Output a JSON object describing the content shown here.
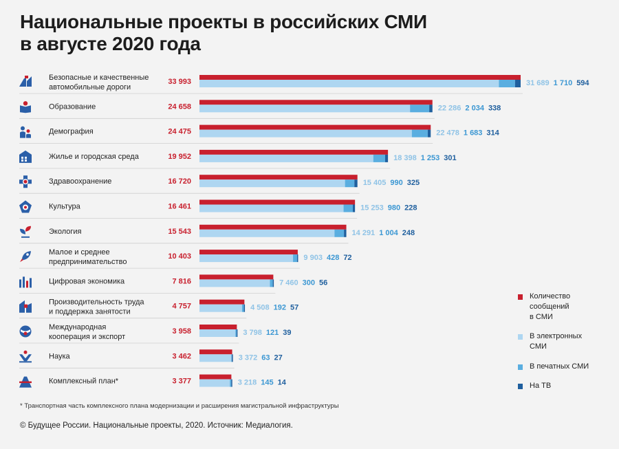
{
  "title": {
    "line1": "Национальные проекты в российских СМИ",
    "line2": "в августе 2020 года"
  },
  "chart_data": {
    "type": "bar",
    "categories": [
      "Безопасные и качественные\nавтомобильные дороги",
      "Образование",
      "Демография",
      "Жилье и городская среда",
      "Здравоохранение",
      "Культура",
      "Экология",
      "Малое и среднее\nпредпринимательство",
      "Цифровая экономика",
      "Производительность труда\nи поддержка занятости",
      "Международная\nкооперация и экспорт",
      "Наука",
      "Комплексный план*"
    ],
    "totals_display": [
      "33 993",
      "24 658",
      "24 475",
      "19 952",
      "16 720",
      "16 461",
      "15 543",
      "10 403",
      "7 816",
      "4 757",
      "3 958",
      "3 462",
      "3 377"
    ],
    "series": [
      {
        "name": "Количество\nсообщений\nв СМИ",
        "values": [
          33993,
          24658,
          24475,
          19952,
          16720,
          16461,
          15543,
          10403,
          7816,
          4757,
          3958,
          3462,
          3377
        ]
      },
      {
        "name": "В электронных\nСМИ",
        "values": [
          31689,
          22286,
          22478,
          18398,
          15405,
          15253,
          14291,
          9903,
          7460,
          4508,
          3798,
          3372,
          3218
        ],
        "labels": [
          "31 689",
          "22 286",
          "22 478",
          "18 398",
          "15 405",
          "15 253",
          "14 291",
          "9 903",
          "7 460",
          "4 508",
          "3 798",
          "3 372",
          "3 218"
        ]
      },
      {
        "name": "В печатных СМИ",
        "values": [
          1710,
          2034,
          1683,
          1253,
          990,
          980,
          1004,
          428,
          300,
          192,
          121,
          63,
          145
        ],
        "labels": [
          "1 710",
          "2 034",
          "1 683",
          "1 253",
          "990",
          "980",
          "1 004",
          "428",
          "300",
          "192",
          "121",
          "63",
          "145"
        ]
      },
      {
        "name": "На ТВ",
        "values": [
          594,
          338,
          314,
          301,
          325,
          228,
          248,
          72,
          56,
          57,
          39,
          27,
          14
        ],
        "labels": [
          "594",
          "338",
          "314",
          "301",
          "325",
          "228",
          "248",
          "72",
          "56",
          "57",
          "39",
          "27",
          "14"
        ]
      }
    ],
    "icons": [
      "road-icon",
      "education-icon",
      "demography-icon",
      "housing-icon",
      "healthcare-icon",
      "culture-icon",
      "ecology-icon",
      "business-rocket-icon",
      "digital-economy-icon",
      "labor-productivity-icon",
      "international-cooperation-icon",
      "science-icon",
      "complex-plan-icon"
    ]
  },
  "colors": {
    "total": "#c8202e",
    "electronic": "#aed6f1",
    "print": "#5aaee0",
    "tv": "#1f5f9e",
    "icon": "#2b5fa8",
    "icon_accent": "#c8202e"
  },
  "footnote": "* Транспортная часть комплексного плана модернизации и расширения магистральной инфраструктуры",
  "copyright": "© Будущее России. Национальные проекты, 2020. Источник: Медиалогия."
}
